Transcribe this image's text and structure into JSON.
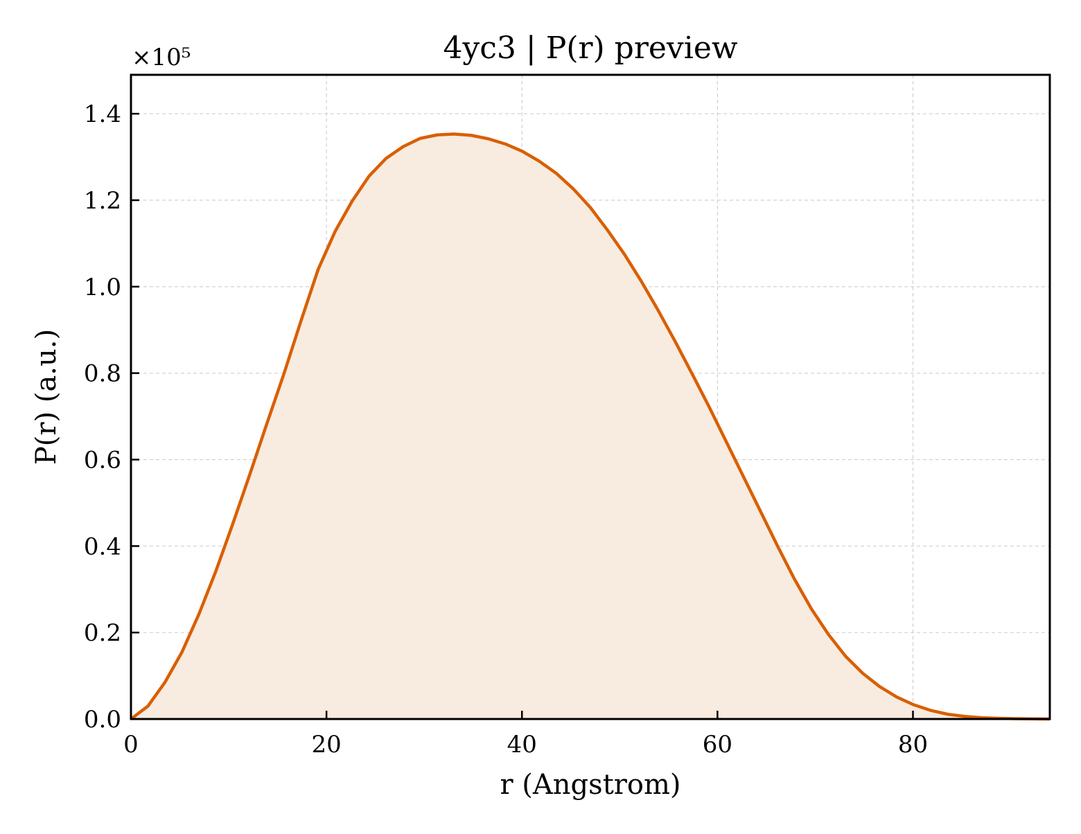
{
  "chart_data": {
    "type": "area",
    "title": "4yc3 | P(r) preview",
    "xlabel": "r (Angstrom)",
    "ylabel": "P(r) (a.u.)",
    "y_multiplier": "×10⁵",
    "xlim": [
      0,
      94
    ],
    "ylim": [
      0,
      1.49
    ],
    "xticks": [
      0,
      20,
      40,
      60,
      80
    ],
    "xtick_labels": [
      "0",
      "20",
      "40",
      "60",
      "80"
    ],
    "yticks": [
      0.0,
      0.2,
      0.4,
      0.6,
      0.8,
      1.0,
      1.2,
      1.4
    ],
    "ytick_labels": [
      "0.0",
      "0.2",
      "0.4",
      "0.6",
      "0.8",
      "1.0",
      "1.2",
      "1.4"
    ],
    "grid": true,
    "series": [
      {
        "x": [
          0,
          1.74,
          3.48,
          5.22,
          6.96,
          8.7,
          10.44,
          12.19,
          13.93,
          15.67,
          17.41,
          19.15,
          20.89,
          22.63,
          24.37,
          26.11,
          27.85,
          29.59,
          31.33,
          33.07,
          34.81,
          36.56,
          38.3,
          40.04,
          41.78,
          43.52,
          45.26,
          47.0,
          48.74,
          50.48,
          52.22,
          53.96,
          55.7,
          57.44,
          59.19,
          60.93,
          62.67,
          64.41,
          66.15,
          67.89,
          69.63,
          71.37,
          73.11,
          74.85,
          76.59,
          78.33,
          80.07,
          81.81,
          83.56,
          85.3,
          87.04,
          88.78,
          90.52,
          92.26,
          94.0
        ],
        "y": [
          0.0,
          0.03,
          0.085,
          0.155,
          0.243,
          0.343,
          0.453,
          0.568,
          0.685,
          0.8,
          0.922,
          1.04,
          1.128,
          1.198,
          1.256,
          1.297,
          1.324,
          1.343,
          1.351,
          1.353,
          1.35,
          1.342,
          1.33,
          1.313,
          1.29,
          1.262,
          1.226,
          1.183,
          1.131,
          1.075,
          1.012,
          0.944,
          0.872,
          0.797,
          0.72,
          0.64,
          0.56,
          0.48,
          0.4,
          0.323,
          0.254,
          0.195,
          0.145,
          0.106,
          0.075,
          0.051,
          0.033,
          0.02,
          0.011,
          0.006,
          0.003,
          0.0015,
          0.0008,
          0.0003,
          0.0
        ]
      }
    ],
    "line_color": "#d95f02",
    "fill_color": "#f8ebe0"
  }
}
